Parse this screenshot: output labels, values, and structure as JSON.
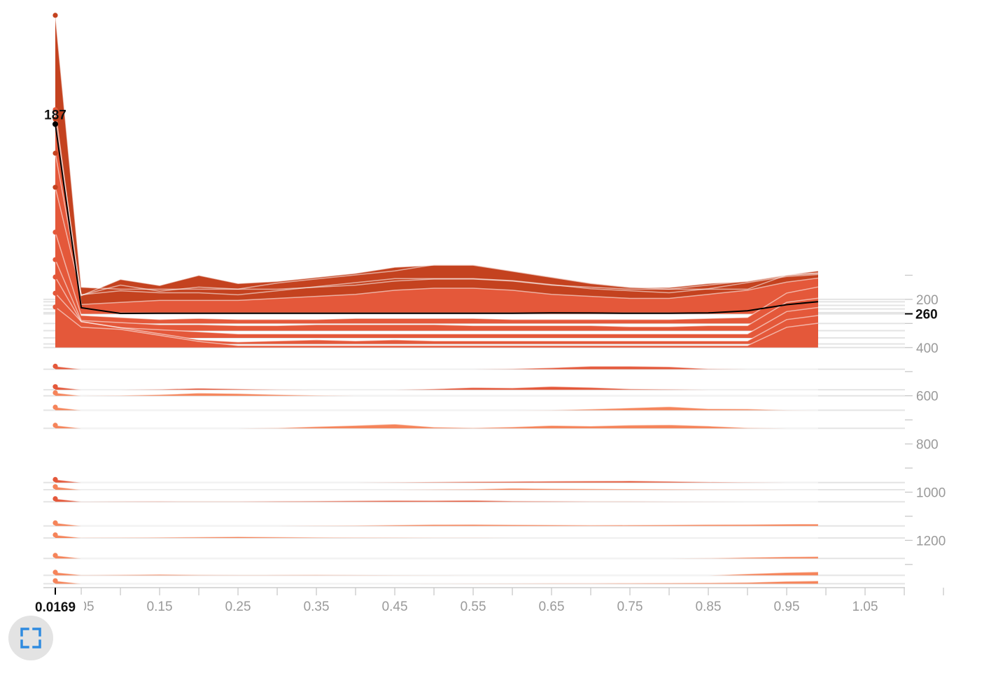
{
  "chart_data": {
    "type": "area",
    "x_ticks": [
      "0.05",
      "0.15",
      "0.25",
      "0.35",
      "0.45",
      "0.55",
      "0.65",
      "0.75",
      "0.85",
      "0.95",
      "1.05"
    ],
    "y_ticks": [
      "200",
      "400",
      "600",
      "800",
      "1000",
      "1200"
    ],
    "xlim": [
      0.0169,
      1.15
    ],
    "ylim": [
      0,
      1380
    ],
    "highlight": {
      "x_label": "0.0169",
      "y_label": "260",
      "value_label": "187"
    },
    "colors": {
      "dark": "#c4421f",
      "mid": "#e4583a",
      "light": "#f5845a",
      "highlight_line": "#000000"
    },
    "x": [
      0.0169,
      0.05,
      0.1,
      0.15,
      0.2,
      0.25,
      0.3,
      0.35,
      0.4,
      0.45,
      0.5,
      0.55,
      0.6,
      0.65,
      0.7,
      0.75,
      0.8,
      0.85,
      0.9,
      0.95,
      0.99
    ],
    "series": [
      {
        "level": 200,
        "values": [
          280,
          12,
          10,
          10,
          10,
          10,
          10,
          12,
          14,
          18,
          20,
          20,
          18,
          14,
          12,
          10,
          10,
          10,
          10,
          24,
          28
        ],
        "shade": 0
      },
      {
        "level": 210,
        "values": [
          180,
          6,
          22,
          16,
          26,
          18,
          20,
          24,
          28,
          34,
          36,
          36,
          30,
          24,
          18,
          14,
          14,
          18,
          20,
          26,
          28
        ],
        "shade": 0
      },
      {
        "level": 225,
        "values": [
          150,
          10,
          20,
          14,
          18,
          16,
          22,
          26,
          30,
          34,
          40,
          40,
          34,
          28,
          22,
          18,
          16,
          20,
          24,
          30,
          32
        ],
        "shade": 0
      },
      {
        "level": 240,
        "values": [
          120,
          14,
          18,
          16,
          16,
          14,
          18,
          22,
          26,
          30,
          30,
          30,
          28,
          24,
          20,
          18,
          16,
          20,
          26,
          32,
          34
        ],
        "shade": 0
      },
      {
        "level": 255,
        "values": [
          200,
          8,
          10,
          12,
          12,
          12,
          14,
          16,
          18,
          22,
          24,
          24,
          22,
          18,
          16,
          14,
          14,
          18,
          22,
          30,
          34
        ],
        "shade": 1
      },
      {
        "level": 260,
        "values": [
          187,
          6,
          0.4,
          0.5,
          0.6,
          0.5,
          0.5,
          0.6,
          0.5,
          0.6,
          0.6,
          0.5,
          0.6,
          0.9,
          0.8,
          0.5,
          0.6,
          0.9,
          3.0,
          9.0,
          12.0
        ],
        "shade": 1,
        "highlight": true
      },
      {
        "level": 300,
        "values": [
          90,
          8,
          6,
          4,
          5,
          4,
          4,
          4,
          5,
          5,
          5,
          5,
          4,
          4,
          4,
          4,
          4,
          5,
          6,
          30,
          36
        ],
        "shade": 1
      },
      {
        "level": 330,
        "values": [
          70,
          10,
          8,
          6,
          6,
          5,
          5,
          6,
          6,
          6,
          6,
          5,
          5,
          5,
          5,
          4,
          4,
          5,
          5,
          28,
          32
        ],
        "shade": 1
      },
      {
        "level": 360,
        "values": [
          60,
          16,
          10,
          8,
          6,
          4,
          4,
          4,
          4,
          4,
          4,
          4,
          4,
          4,
          4,
          4,
          4,
          4,
          4,
          26,
          30
        ],
        "shade": 1
      },
      {
        "level": 385,
        "values": [
          50,
          22,
          16,
          10,
          4,
          2,
          3,
          4,
          3,
          4,
          3,
          3,
          3,
          3,
          3,
          3,
          3,
          3,
          3,
          24,
          28
        ],
        "shade": 1
      },
      {
        "level": 400,
        "values": [
          40,
          20,
          18,
          12,
          6,
          2,
          2,
          2,
          2,
          2,
          2,
          2,
          2,
          2,
          2,
          2,
          2,
          2,
          2,
          20,
          24
        ],
        "shade": 1
      },
      {
        "level": 490,
        "values": [
          3,
          0,
          0,
          0,
          0,
          0,
          0,
          0,
          0,
          0,
          0,
          0,
          0.5,
          1.5,
          3,
          3,
          2.5,
          0.5,
          0,
          0,
          0
        ],
        "shade": 1
      },
      {
        "level": 575,
        "values": [
          3,
          0,
          0,
          0.5,
          1.5,
          0.8,
          0.3,
          0,
          0,
          0,
          0.8,
          2.2,
          1.8,
          3.2,
          2.3,
          0.8,
          0.5,
          0,
          0,
          0,
          0
        ],
        "shade": 1
      },
      {
        "level": 600,
        "values": [
          3,
          0,
          0.3,
          1.2,
          2.7,
          2.2,
          1.2,
          0.4,
          0,
          0,
          0,
          0,
          0,
          0,
          0,
          0,
          0,
          0,
          0,
          0,
          0
        ],
        "shade": 2
      },
      {
        "level": 660,
        "values": [
          3,
          0,
          0,
          0,
          0,
          0,
          0,
          0,
          0,
          0,
          0,
          0,
          0,
          0.2,
          1.1,
          2.3,
          3.5,
          1.5,
          1.3,
          0.2,
          0
        ],
        "shade": 2
      },
      {
        "level": 735,
        "values": [
          3,
          0,
          0,
          0,
          0,
          0,
          0.4,
          1.7,
          2.8,
          4.2,
          1.2,
          0.5,
          1.3,
          2.8,
          2.2,
          3.2,
          3.5,
          2.3,
          0.5,
          0,
          0
        ],
        "shade": 2
      },
      {
        "level": 960,
        "values": [
          3,
          0,
          0,
          0,
          0,
          0,
          0,
          0,
          0,
          0.2,
          0.6,
          0.9,
          1.1,
          1.3,
          1.5,
          1.7,
          1.2,
          0.6,
          0.2,
          0,
          0
        ],
        "shade": 1
      },
      {
        "level": 990,
        "values": [
          3,
          0,
          0,
          0,
          0,
          0,
          0,
          0,
          0,
          0,
          0.3,
          0.6,
          1.5,
          1.1,
          0.9,
          0.7,
          0.5,
          0.3,
          0.2,
          0,
          0
        ],
        "shade": 2
      },
      {
        "level": 1040,
        "values": [
          3,
          0.2,
          0.3,
          0.5,
          0.3,
          0.4,
          0.6,
          0.8,
          1.0,
          1.3,
          1.2,
          1.5,
          0.8,
          0.6,
          0.4,
          0.3,
          0.2,
          0.1,
          0,
          0,
          0
        ],
        "shade": 1
      },
      {
        "level": 1140,
        "values": [
          3,
          0,
          0,
          0,
          0,
          0,
          0,
          0.2,
          0.4,
          0.9,
          1.3,
          1.5,
          1.2,
          1.0,
          0.8,
          0.9,
          1.1,
          1.3,
          1.5,
          1.8,
          1.9
        ],
        "shade": 2
      },
      {
        "level": 1190,
        "values": [
          3,
          0.2,
          0.3,
          0.6,
          0.9,
          1.3,
          0.9,
          0.6,
          0.4,
          0.3,
          0.2,
          0.1,
          0,
          0,
          0,
          0,
          0,
          0,
          0,
          0,
          0
        ],
        "shade": 2
      },
      {
        "level": 1275,
        "values": [
          3,
          0,
          0,
          0,
          0,
          0,
          0,
          0,
          0,
          0,
          0,
          0,
          0,
          0,
          0,
          0,
          0,
          0.3,
          1.0,
          1.6,
          1.9
        ],
        "shade": 2
      },
      {
        "level": 1345,
        "values": [
          3,
          0.3,
          0.6,
          0.9,
          0.5,
          0.3,
          0.4,
          0.5,
          0.3,
          0.2,
          0.1,
          0,
          0,
          0,
          0,
          0,
          0,
          0,
          1.4,
          2.8,
          3.4
        ],
        "shade": 2
      },
      {
        "level": 1380,
        "values": [
          3,
          0,
          0,
          0,
          0,
          0,
          0,
          0,
          0,
          0,
          0.1,
          0.2,
          0.3,
          0.4,
          0.5,
          0.6,
          0.8,
          1.0,
          1.3,
          2.4,
          2.9
        ],
        "shade": 2
      }
    ]
  }
}
